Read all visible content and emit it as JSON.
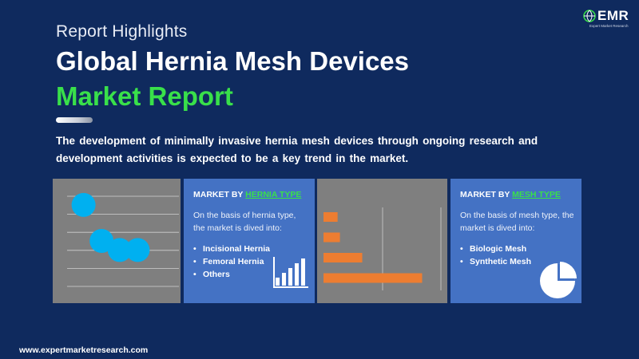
{
  "header": {
    "subtitle": "Report Highlights",
    "title_line1": "Global Hernia Mesh Devices",
    "title_line2": "Market Report"
  },
  "logo": {
    "text": "EMR",
    "tagline": "Expert Market Research",
    "icon": "globe-icon"
  },
  "description": "The development of minimally invasive hernia mesh devices through ongoing research and development activities is expected to be a key trend in the market.",
  "cards": [
    {
      "heading_prefix": "MARKET BY ",
      "heading_highlight": "HERNIA TYPE",
      "intro": "On the basis of hernia type, the market is dived into:",
      "items": [
        "Incisional Hernia",
        "Femoral Hernia",
        "Others"
      ],
      "icon": "bar-chart-icon"
    },
    {
      "heading_prefix": "MARKET BY ",
      "heading_highlight": "MESH TYPE",
      "intro": "On the basis of mesh type, the market is dived into:",
      "items": [
        "Biologic Mesh",
        "Synthetic Mesh"
      ],
      "icon": "pie-chart-icon"
    }
  ],
  "colors": {
    "background": "#0f2a5e",
    "accent_green": "#39e04a",
    "panel_blue": "#4472c4",
    "panel_gray": "#7f7f7f",
    "bar_orange": "#ed7d31",
    "dot_blue": "#00b0f0"
  },
  "chart_data": [
    {
      "type": "scatter",
      "points": [
        {
          "x": 1,
          "y": 5
        },
        {
          "x": 2,
          "y": 2.6
        },
        {
          "x": 3,
          "y": 2
        },
        {
          "x": 4,
          "y": 2
        }
      ],
      "xlim": [
        0,
        5
      ],
      "ylim": [
        0,
        6
      ],
      "grid": true
    },
    {
      "type": "bar",
      "orientation": "horizontal",
      "values": [
        12,
        14,
        33,
        84
      ],
      "xlim": [
        0,
        100
      ],
      "grid": true
    }
  ],
  "footer": {
    "url": "www.expertmarketresearch.com"
  }
}
